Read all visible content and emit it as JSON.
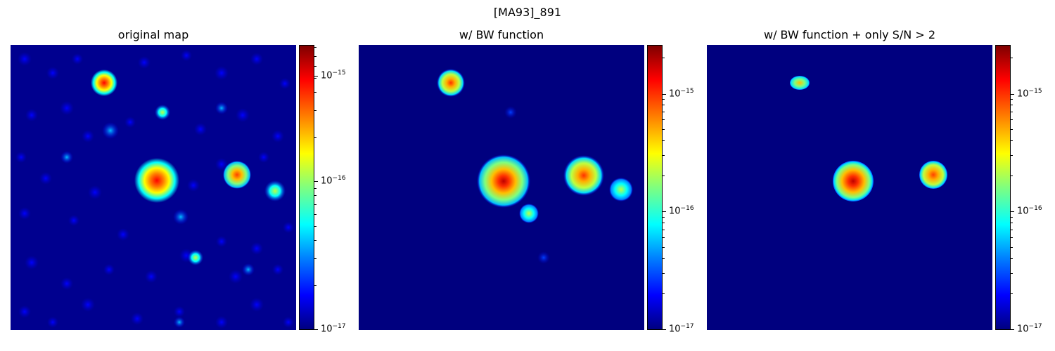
{
  "suptitle": "[MA93]_891",
  "colormap": "jet",
  "chart_data": [
    {
      "type": "heatmap",
      "title": "original map",
      "colorbar": {
        "scale": "log",
        "range": [
          1e-17,
          5e-15
        ],
        "ticks": [
          1e-17,
          1e-16,
          1e-15
        ],
        "tick_labels": [
          "10−17",
          "10−16",
          "10−15"
        ]
      },
      "sources": [
        {
          "x": 51,
          "y": 48,
          "peak": 1.3e-15,
          "r": 18
        },
        {
          "x": 54,
          "y": 61,
          "peak": 2.5e-15,
          "r": 30
        },
        {
          "x": 80,
          "y": 56,
          "peak": 1.2e-15,
          "r": 17
        },
        {
          "x": 93,
          "y": 52,
          "peak": 5e-16,
          "r": 12
        },
        {
          "x": 33,
          "y": 87,
          "peak": 1e-15,
          "r": 15
        },
        {
          "x": 53,
          "y": 76,
          "peak": 2e-16,
          "r": 10
        },
        {
          "x": 38,
          "y": 71,
          "peak": 1.5e-16,
          "r": 10
        },
        {
          "x": 64,
          "y": 26,
          "peak": 1.2e-16,
          "r": 10
        }
      ]
    },
    {
      "type": "heatmap",
      "title": "w/ BW function",
      "colorbar": {
        "scale": "log",
        "range": [
          1e-17,
          2.5e-15
        ],
        "ticks": [
          1e-17,
          1e-16,
          1e-15
        ],
        "tick_labels": [
          "10−17",
          "10−16",
          "10−15"
        ]
      },
      "sources": [
        {
          "x": 51,
          "y": 52,
          "peak": 2.5e-15,
          "r": 36
        },
        {
          "x": 79,
          "y": 54,
          "peak": 1.3e-15,
          "r": 27
        },
        {
          "x": 92,
          "y": 49,
          "peak": 4e-16,
          "r": 15
        },
        {
          "x": 32,
          "y": 87,
          "peak": 1.1e-15,
          "r": 18
        },
        {
          "x": 53,
          "y": 77,
          "peak": 3e-17,
          "r": 8
        },
        {
          "x": 63,
          "y": 25,
          "peak": 3e-17,
          "r": 8
        }
      ]
    },
    {
      "type": "heatmap",
      "title": "w/ BW function + only S/N > 2",
      "colorbar": {
        "scale": "log",
        "range": [
          1e-17,
          2.5e-15
        ],
        "ticks": [
          1e-17,
          1e-16,
          1e-15
        ],
        "tick_labels": [
          "10−17",
          "10−16",
          "10−15"
        ]
      },
      "sources": [
        {
          "x": 51,
          "y": 52,
          "peak": 2.5e-15,
          "r": 28
        },
        {
          "x": 79,
          "y": 54,
          "peak": 1.3e-15,
          "r": 20
        },
        {
          "x": 32,
          "y": 87,
          "peak": 5e-16,
          "r": 12
        }
      ]
    }
  ]
}
